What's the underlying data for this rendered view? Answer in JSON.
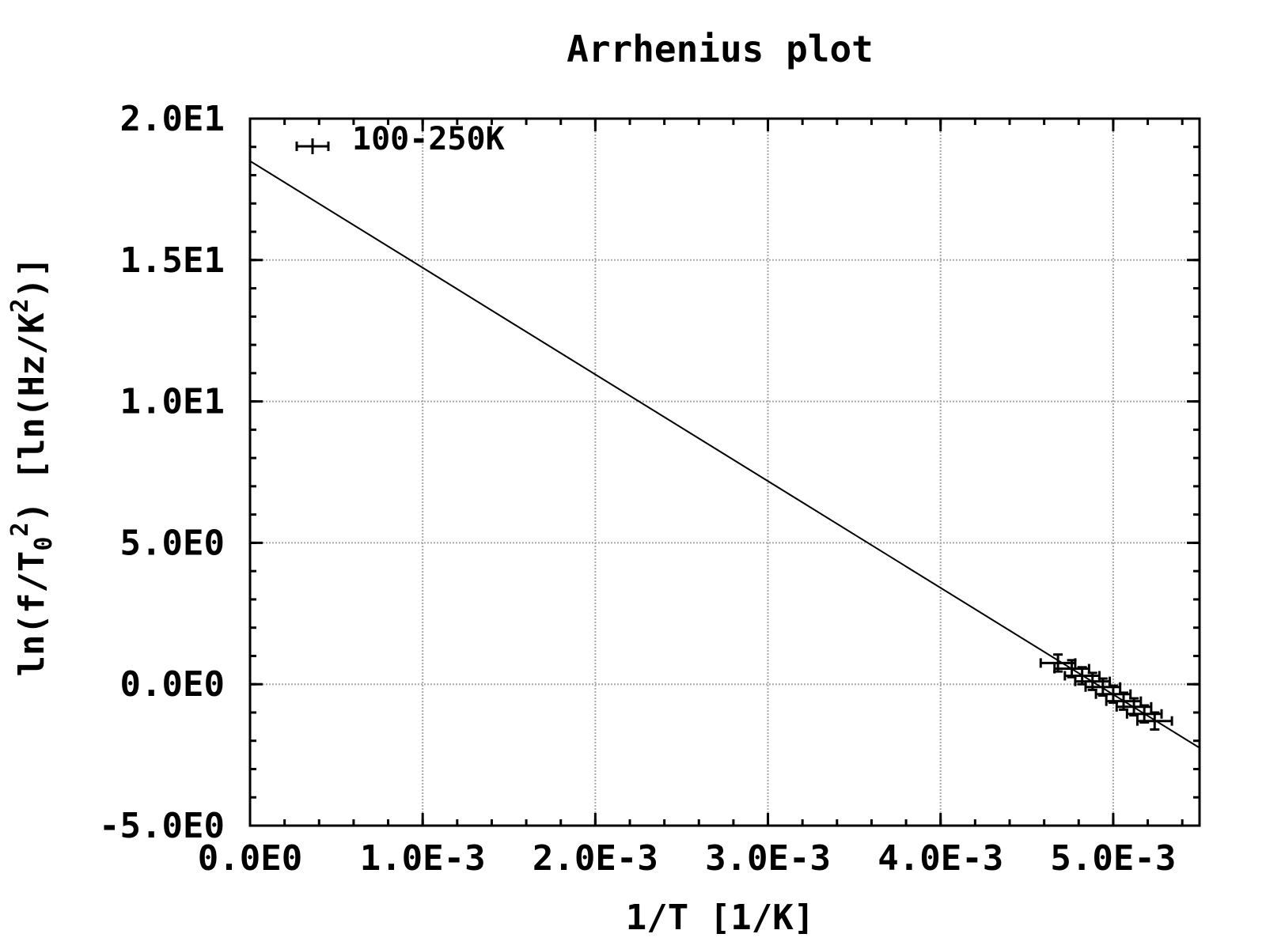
{
  "chart_data": {
    "type": "scatter",
    "title": "Arrhenius plot",
    "xlabel": "1/T [1/K]",
    "ylabel": {
      "prefix": "ln(f/T",
      "sub": "0",
      "sup": "2",
      "mid": ") [ln(Hz/K",
      "sup2": "2",
      "suffix": ")]"
    },
    "xlim": [
      0.0,
      0.0055
    ],
    "ylim": [
      -5.0,
      20.0
    ],
    "x_ticks": [
      {
        "value": 0.0,
        "label": "0.0E0"
      },
      {
        "value": 0.001,
        "label": "1.0E-3"
      },
      {
        "value": 0.002,
        "label": "2.0E-3"
      },
      {
        "value": 0.003,
        "label": "3.0E-3"
      },
      {
        "value": 0.004,
        "label": "4.0E-3"
      },
      {
        "value": 0.005,
        "label": "5.0E-3"
      }
    ],
    "y_ticks": [
      {
        "value": -5.0,
        "label": "-5.0E0"
      },
      {
        "value": 0.0,
        "label": "0.0E0"
      },
      {
        "value": 5.0,
        "label": "5.0E0"
      },
      {
        "value": 10.0,
        "label": "1.0E1"
      },
      {
        "value": 15.0,
        "label": "1.5E1"
      },
      {
        "value": 20.0,
        "label": "2.0E1"
      }
    ],
    "grid": true,
    "legend_position": "top-left",
    "series": [
      {
        "name": "100-250K",
        "kind": "points-xerror-yerror",
        "points": [
          {
            "x": 0.00468,
            "y": 0.75,
            "xerr": 0.0001,
            "yerr": 0.3
          },
          {
            "x": 0.00476,
            "y": 0.55,
            "xerr": 0.0001,
            "yerr": 0.3
          },
          {
            "x": 0.00482,
            "y": 0.3,
            "xerr": 0.0001,
            "yerr": 0.3
          },
          {
            "x": 0.00488,
            "y": 0.1,
            "xerr": 0.0001,
            "yerr": 0.3
          },
          {
            "x": 0.00494,
            "y": -0.1,
            "xerr": 0.0001,
            "yerr": 0.3
          },
          {
            "x": 0.005,
            "y": -0.35,
            "xerr": 0.0001,
            "yerr": 0.3
          },
          {
            "x": 0.00506,
            "y": -0.6,
            "xerr": 0.0001,
            "yerr": 0.3
          },
          {
            "x": 0.00512,
            "y": -0.8,
            "xerr": 0.0001,
            "yerr": 0.3
          },
          {
            "x": 0.00518,
            "y": -1.05,
            "xerr": 0.0001,
            "yerr": 0.3
          },
          {
            "x": 0.00524,
            "y": -1.3,
            "xerr": 0.0001,
            "yerr": 0.3
          }
        ]
      },
      {
        "name": "",
        "kind": "line",
        "points": [
          {
            "x": 0.0,
            "y": 18.5
          },
          {
            "x": 0.0055,
            "y": -2.25
          }
        ]
      }
    ]
  }
}
